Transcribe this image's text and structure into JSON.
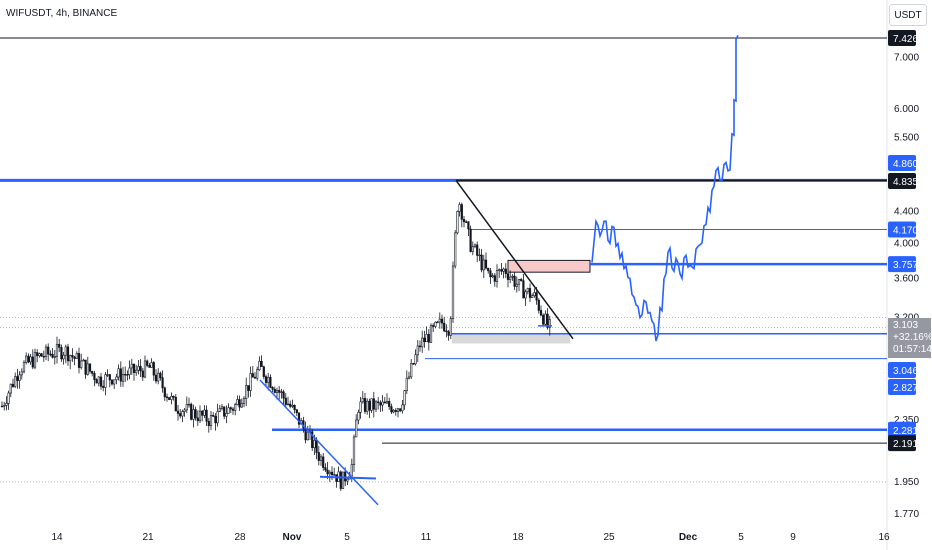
{
  "symbol": "WIFUSDT, 4h, BINANCE",
  "currency": "USDT",
  "colors": {
    "candle": "#131722",
    "line": "#2962ff",
    "black_line": "#131722",
    "grid": "#b2b5be",
    "zone_red": "#f8c9c9",
    "zone_grey": "#d9d9d9"
  },
  "chart_data": {
    "type": "line",
    "x_ticks": [
      "14",
      "21",
      "28",
      "Nov",
      "5",
      "11",
      "18",
      "25",
      "Dec",
      "5",
      "9",
      "16"
    ],
    "y_ticks": [
      "7.000",
      "6.000",
      "5.500",
      "4.400",
      "4.000",
      "3.600",
      "3.200",
      "2.350",
      "1.950",
      "1.770"
    ],
    "price_labels": [
      {
        "text": "7.426",
        "style": "black"
      },
      {
        "text": "4.860",
        "style": "blue"
      },
      {
        "text": "4.835",
        "style": "black"
      },
      {
        "text": "4.170",
        "style": "blue"
      },
      {
        "text": "3.757",
        "style": "blue"
      },
      {
        "text": "3.103",
        "style": "grey"
      },
      {
        "text": "+32.16%",
        "style": "grey"
      },
      {
        "text": "01:57:14",
        "style": "grey"
      },
      {
        "text": "3.046",
        "style": "blue"
      },
      {
        "text": "2.827",
        "style": "blue"
      },
      {
        "text": "2.281",
        "style": "blue"
      },
      {
        "text": "2.191",
        "style": "black"
      }
    ],
    "levels": [
      7.426,
      4.86,
      4.835,
      4.17,
      3.757,
      3.046,
      2.827,
      2.281,
      2.191
    ],
    "scale": "log",
    "candles_approx": [
      {
        "x": "14",
        "y": 2.7
      },
      {
        "x": "21",
        "y": 2.75
      },
      {
        "x": "28",
        "y": 2.35
      },
      {
        "x": "Nov",
        "y": 2.2
      },
      {
        "x": "5",
        "y": 1.95
      },
      {
        "x": "11",
        "y": 3.1
      },
      {
        "x": "18",
        "y": 3.45
      },
      {
        "x": "22",
        "y": 3.1
      }
    ],
    "projection_approx": [
      {
        "x": "24",
        "y": 4.17
      },
      {
        "x": "25",
        "y": 3.9
      },
      {
        "x": "28",
        "y": 3.2
      },
      {
        "x": "Dec",
        "y": 3.8
      },
      {
        "x": "3",
        "y": 4.9
      },
      {
        "x": "5",
        "y": 7.426
      }
    ]
  }
}
